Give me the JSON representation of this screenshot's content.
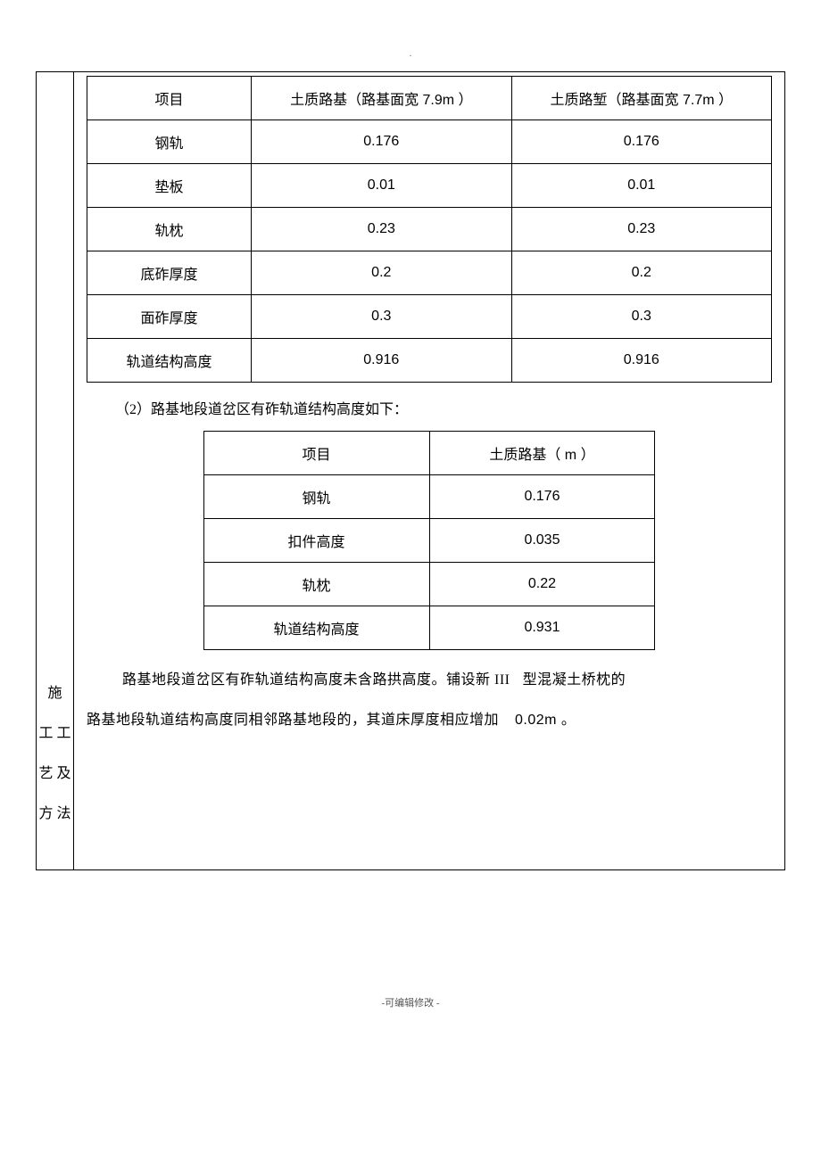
{
  "top_dot": ".",
  "left_label": "施工工艺及方法",
  "table1": {
    "headers": [
      "项目",
      "土质路基（路基面宽 7.9m ）",
      "土质路堑（路基面宽 7.7m ）"
    ],
    "rows": [
      {
        "label": "钢轨",
        "v1": "0.176",
        "v2": "0.176"
      },
      {
        "label": "垫板",
        "v1": "0.01",
        "v2": "0.01"
      },
      {
        "label": "轨枕",
        "v1": "0.23",
        "v2": "0.23"
      },
      {
        "label": "底砟厚度",
        "v1": "0.2",
        "v2": "0.2"
      },
      {
        "label": "面砟厚度",
        "v1": "0.3",
        "v2": "0.3"
      },
      {
        "label": "轨道结构高度",
        "v1": "0.916",
        "v2": "0.916"
      }
    ]
  },
  "para1": "（2）路基地段道岔区有砟轨道结构高度如下：",
  "table2": {
    "headers": [
      "项目",
      "土质路基（ m ）"
    ],
    "rows": [
      {
        "label": "钢轨",
        "v": "0.176"
      },
      {
        "label": "扣件高度",
        "v": "0.035"
      },
      {
        "label": "轨枕",
        "v": "0.22"
      },
      {
        "label": "轨道结构高度",
        "v": "0.931"
      }
    ]
  },
  "body1_a": "路基地段道岔区有砟轨道结构高度未含路拱高度。铺设新 III ",
  "body1_b": "型混凝土桥枕的",
  "body2_a": "路基地段轨道结构高度同相邻路基地段的，其道床厚度相应增加",
  "body2_b": "0.02m 。",
  "footer": "-可编辑修改 -"
}
